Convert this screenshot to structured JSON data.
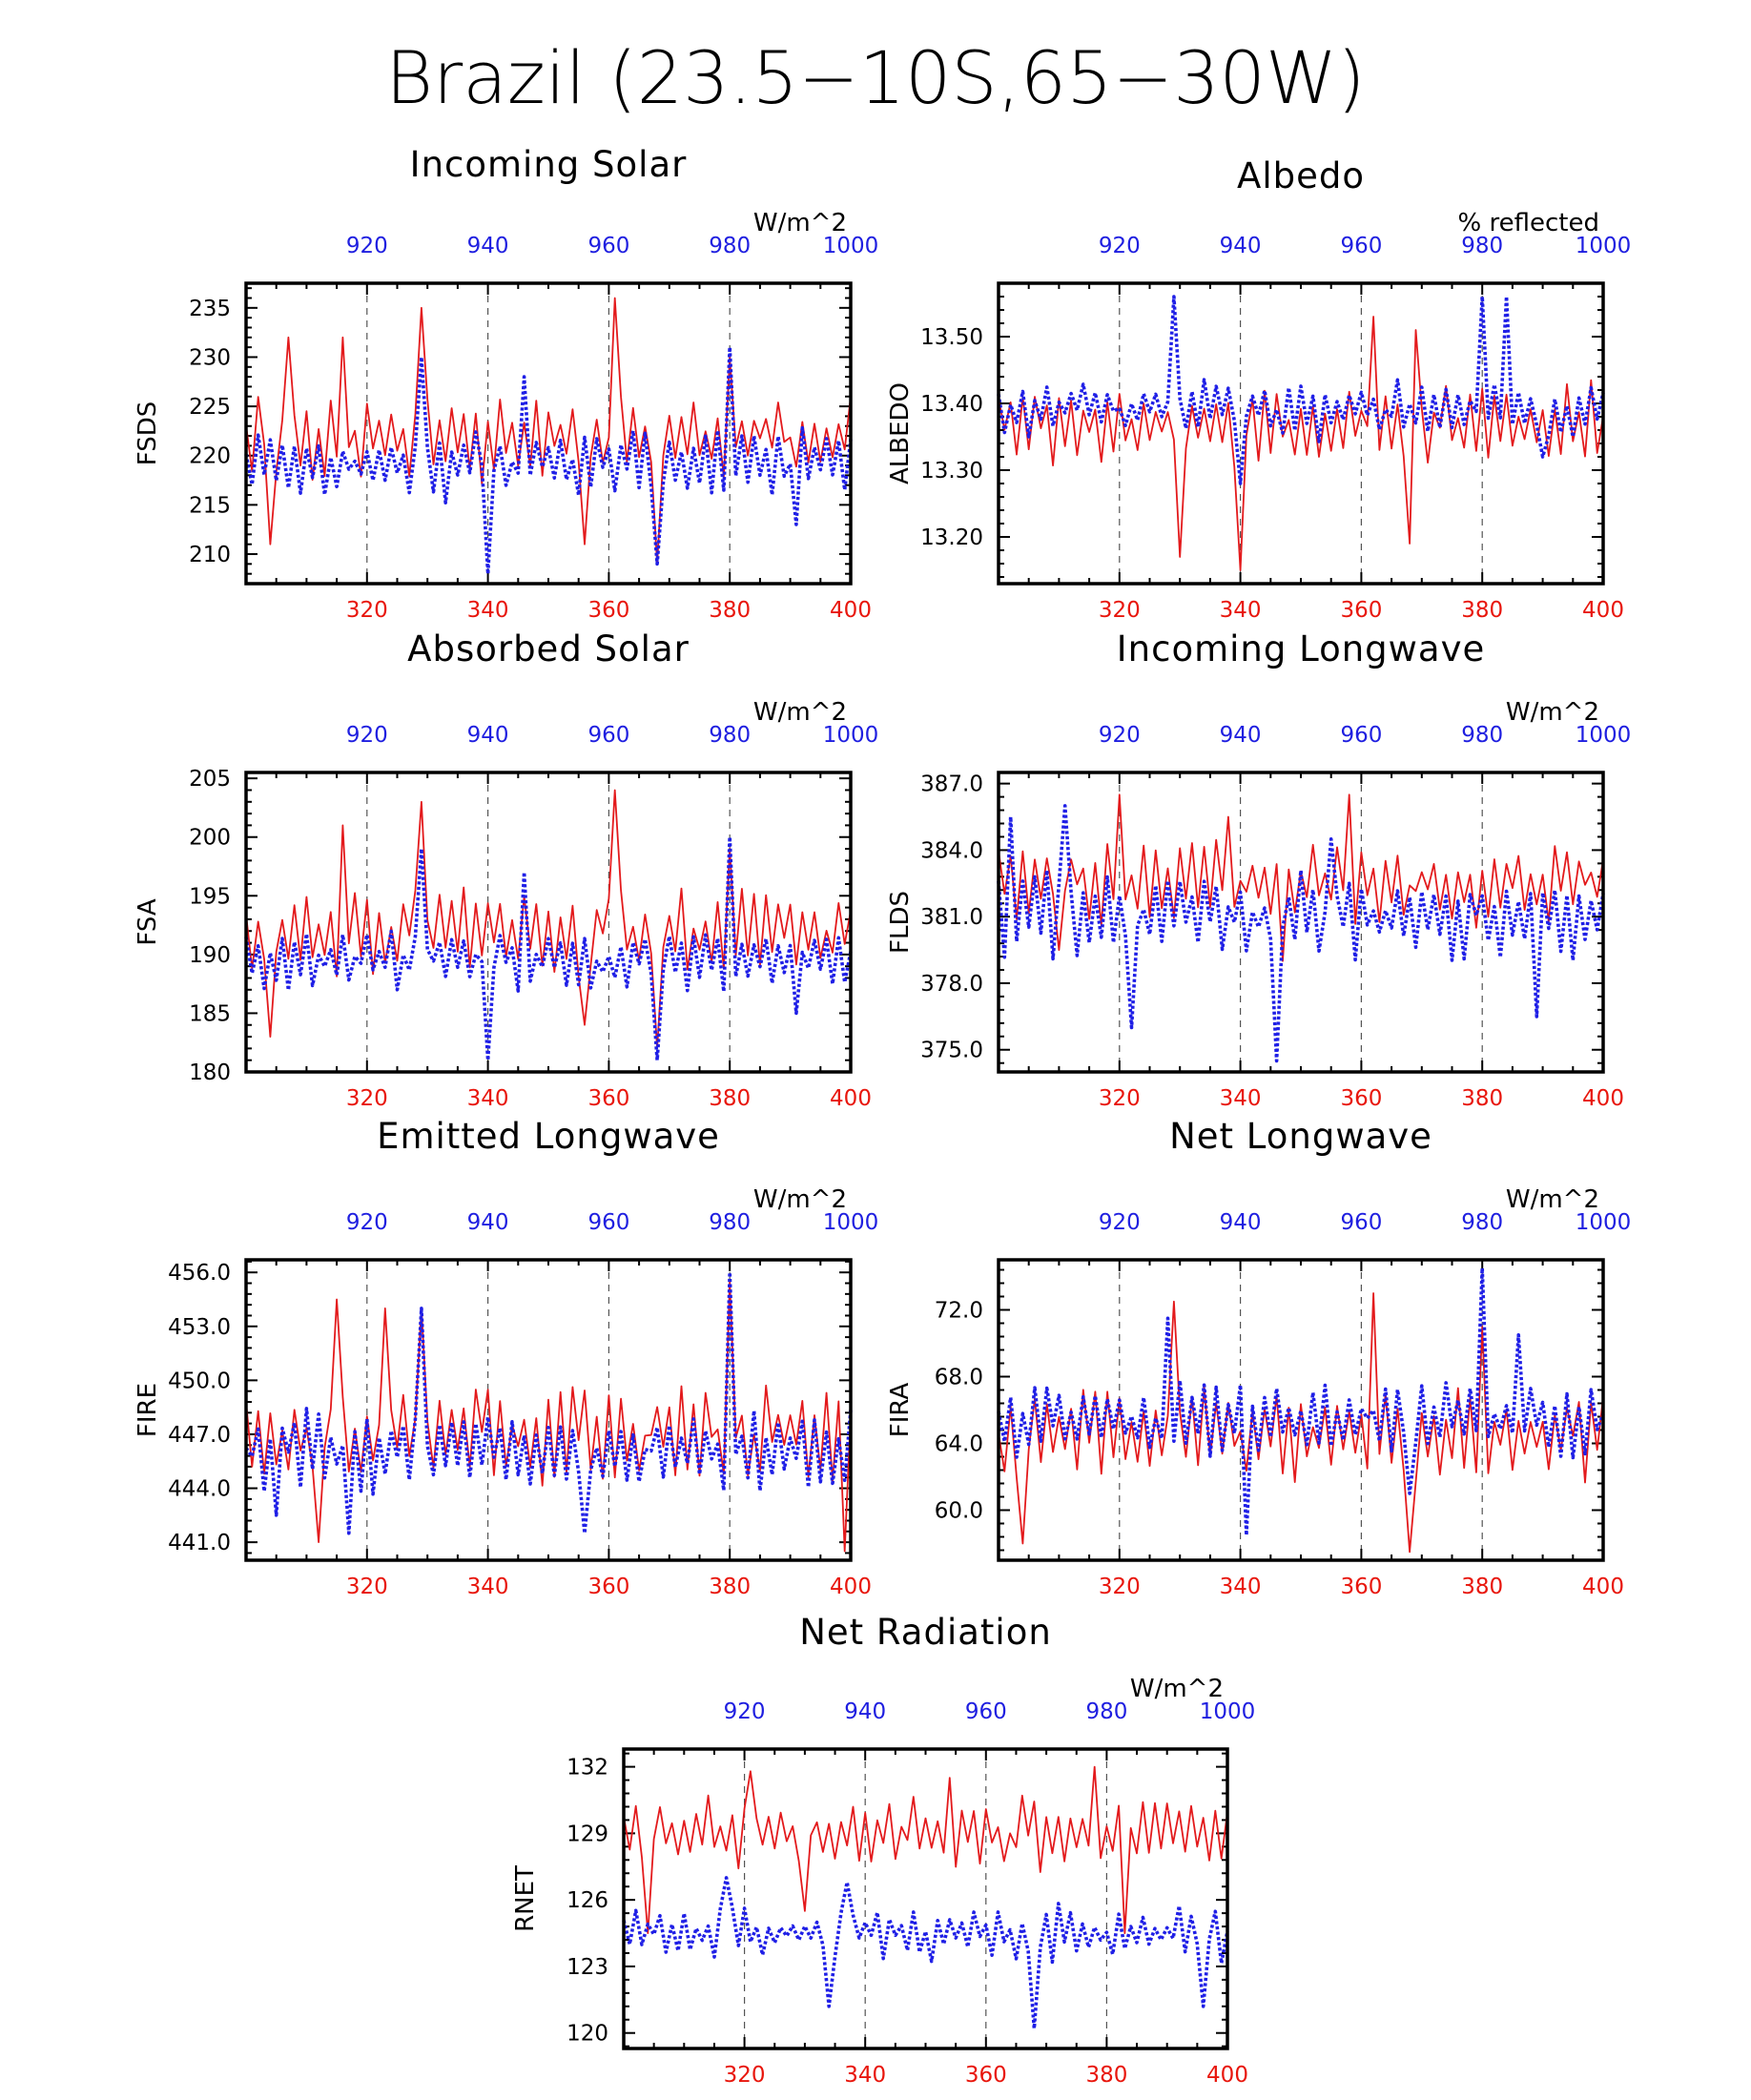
{
  "figure_title": "Brazil (23.5−10S,65−30W)",
  "colors": {
    "series_a": "#e31a1c",
    "series_b": "#1f1fe6",
    "bottom_axis": "#e8160c",
    "top_axis": "#1f1fe0",
    "grid": "#555555"
  },
  "chart_data": [
    {
      "type": "line",
      "title": "Incoming Solar",
      "ylabel": "FSDS",
      "units": "W/m^2",
      "ylim": [
        207,
        237.5
      ],
      "yticks": [
        "210",
        "215",
        "220",
        "225",
        "230",
        "235"
      ],
      "ytick_values": [
        210,
        215,
        220,
        225,
        230,
        235
      ],
      "x_bottom": {
        "range": [
          300,
          400
        ],
        "ticks": [
          320,
          340,
          360,
          380,
          400
        ]
      },
      "x_top": {
        "range": [
          900,
          1000
        ],
        "ticks": [
          920,
          940,
          960,
          980,
          1000
        ]
      },
      "grid": "dashed vertical at 320, 340, 360, 380",
      "series": [
        {
          "style": "solid",
          "color": "red",
          "mean": 222,
          "amp": 5,
          "seed": 11,
          "peaks": [
            [
              7,
              232
            ],
            [
              16,
              232
            ],
            [
              29,
              235
            ],
            [
              61,
              236
            ],
            [
              80,
              230
            ]
          ],
          "troughs": [
            [
              4,
              211
            ],
            [
              56,
              211
            ],
            [
              68,
              209
            ]
          ]
        },
        {
          "style": "dotted",
          "color": "blue",
          "mean": 219,
          "amp": 4,
          "seed": 23,
          "peaks": [
            [
              29,
              230
            ],
            [
              46,
              228
            ],
            [
              80,
              231
            ]
          ],
          "troughs": [
            [
              40,
              208
            ],
            [
              68,
              209
            ],
            [
              91,
              213
            ]
          ]
        }
      ]
    },
    {
      "type": "line",
      "title": "Albedo",
      "ylabel": "ALBEDO",
      "units": "% reflected",
      "ylim": [
        13.13,
        13.58
      ],
      "yticks": [
        "13.20",
        "13.30",
        "13.40",
        "13.50"
      ],
      "ytick_values": [
        13.2,
        13.3,
        13.4,
        13.5
      ],
      "x_bottom": {
        "range": [
          300,
          400
        ],
        "ticks": [
          320,
          340,
          360,
          380,
          400
        ]
      },
      "x_top": {
        "range": [
          900,
          1000
        ],
        "ticks": [
          920,
          940,
          960,
          980,
          1000
        ]
      },
      "grid": "dashed vertical at 320, 340, 360, 380",
      "series": [
        {
          "style": "solid",
          "color": "red",
          "mean": 13.37,
          "amp": 0.07,
          "seed": 5,
          "peaks": [
            [
              62,
              13.53
            ],
            [
              69,
              13.51
            ]
          ],
          "troughs": [
            [
              30,
              13.17
            ],
            [
              40,
              13.15
            ],
            [
              68,
              13.19
            ]
          ]
        },
        {
          "style": "dotted",
          "color": "blue",
          "mean": 13.39,
          "amp": 0.05,
          "seed": 37,
          "peaks": [
            [
              29,
              13.56
            ],
            [
              80,
              13.56
            ],
            [
              84,
              13.56
            ]
          ],
          "troughs": [
            [
              40,
              13.28
            ],
            [
              90,
              13.32
            ]
          ]
        }
      ]
    },
    {
      "type": "line",
      "title": "Absorbed Solar",
      "ylabel": "FSA",
      "units": "W/m^2",
      "ylim": [
        180,
        205.5
      ],
      "yticks": [
        "180",
        "185",
        "190",
        "195",
        "200",
        "205"
      ],
      "ytick_values": [
        180,
        185,
        190,
        195,
        200,
        205
      ],
      "x_bottom": {
        "range": [
          300,
          400
        ],
        "ticks": [
          320,
          340,
          360,
          380,
          400
        ]
      },
      "x_top": {
        "range": [
          900,
          1000
        ],
        "ticks": [
          920,
          940,
          960,
          980,
          1000
        ]
      },
      "grid": "dashed vertical at 320, 340, 360, 380",
      "series": [
        {
          "style": "solid",
          "color": "red",
          "mean": 192,
          "amp": 4,
          "seed": 13,
          "peaks": [
            [
              16,
              201
            ],
            [
              29,
              203
            ],
            [
              61,
              204
            ],
            [
              80,
              199
            ]
          ],
          "troughs": [
            [
              4,
              183
            ],
            [
              56,
              184
            ],
            [
              68,
              182
            ]
          ]
        },
        {
          "style": "dotted",
          "color": "blue",
          "mean": 189.5,
          "amp": 3,
          "seed": 29,
          "peaks": [
            [
              29,
              199
            ],
            [
              46,
              197
            ],
            [
              80,
              200
            ]
          ],
          "troughs": [
            [
              40,
              181
            ],
            [
              68,
              181
            ],
            [
              91,
              185
            ]
          ]
        }
      ]
    },
    {
      "type": "line",
      "title": "Incoming Longwave",
      "ylabel": "FLDS",
      "units": "W/m^2",
      "ylim": [
        374,
        387.5
      ],
      "yticks": [
        "375.0",
        "378.0",
        "381.0",
        "384.0",
        "387.0"
      ],
      "ytick_values": [
        375,
        378,
        381,
        384,
        387
      ],
      "x_bottom": {
        "range": [
          300,
          400
        ],
        "ticks": [
          320,
          340,
          360,
          380,
          400
        ]
      },
      "x_top": {
        "range": [
          900,
          1000
        ],
        "ticks": [
          920,
          940,
          960,
          980,
          1000
        ]
      },
      "grid": "dashed vertical at 320, 340, 360, 380",
      "series": [
        {
          "style": "solid",
          "color": "red",
          "mean": 382.5,
          "amp": 2.2,
          "seed": 7,
          "peaks": [
            [
              20,
              386.5
            ],
            [
              58,
              386.5
            ],
            [
              38,
              385.5
            ]
          ],
          "troughs": [
            [
              10,
              379.5
            ],
            [
              47,
              379
            ]
          ]
        },
        {
          "style": "dotted",
          "color": "blue",
          "mean": 381,
          "amp": 2.2,
          "seed": 41,
          "peaks": [
            [
              2,
              385.5
            ],
            [
              11,
              386
            ],
            [
              55,
              384.5
            ]
          ],
          "troughs": [
            [
              22,
              376
            ],
            [
              46,
              374.5
            ],
            [
              89,
              376.5
            ]
          ]
        }
      ]
    },
    {
      "type": "line",
      "title": "Emitted Longwave",
      "ylabel": "FIRE",
      "units": "W/m^2",
      "ylim": [
        440,
        456.7
      ],
      "yticks": [
        "441.0",
        "444.0",
        "447.0",
        "450.0",
        "453.0",
        "456.0"
      ],
      "ytick_values": [
        441,
        444,
        447,
        450,
        453,
        456
      ],
      "x_bottom": {
        "range": [
          300,
          400
        ],
        "ticks": [
          320,
          340,
          360,
          380,
          400
        ]
      },
      "x_top": {
        "range": [
          900,
          1000
        ],
        "ticks": [
          920,
          940,
          960,
          980,
          1000
        ]
      },
      "grid": "dashed vertical at 320, 340, 360, 380",
      "series": [
        {
          "style": "solid",
          "color": "red",
          "mean": 447,
          "amp": 3,
          "seed": 17,
          "peaks": [
            [
              15,
              454.5
            ],
            [
              23,
              454
            ],
            [
              29,
              454
            ],
            [
              80,
              455.5
            ]
          ],
          "troughs": [
            [
              12,
              441
            ],
            [
              99,
              440.5
            ]
          ]
        },
        {
          "style": "dotted",
          "color": "blue",
          "mean": 446,
          "amp": 2.5,
          "seed": 31,
          "peaks": [
            [
              29,
              454
            ],
            [
              80,
              456
            ]
          ],
          "troughs": [
            [
              5,
              442.5
            ],
            [
              17,
              441.5
            ],
            [
              56,
              441.5
            ]
          ]
        }
      ]
    },
    {
      "type": "line",
      "title": "Net Longwave",
      "ylabel": "FIRA",
      "units": "W/m^2",
      "ylim": [
        57,
        75
      ],
      "yticks": [
        "60.0",
        "64.0",
        "68.0",
        "72.0"
      ],
      "ytick_values": [
        60,
        64,
        68,
        72
      ],
      "x_bottom": {
        "range": [
          300,
          400
        ],
        "ticks": [
          320,
          340,
          360,
          380,
          400
        ]
      },
      "x_top": {
        "range": [
          900,
          1000
        ],
        "ticks": [
          920,
          940,
          960,
          980,
          1000
        ]
      },
      "grid": "dashed vertical at 320, 340, 360, 380",
      "series": [
        {
          "style": "solid",
          "color": "red",
          "mean": 64.5,
          "amp": 3.2,
          "seed": 19,
          "peaks": [
            [
              29,
              72.5
            ],
            [
              62,
              73
            ],
            [
              80,
              71
            ]
          ],
          "troughs": [
            [
              4,
              58
            ],
            [
              68,
              57.5
            ]
          ]
        },
        {
          "style": "dotted",
          "color": "blue",
          "mean": 65.5,
          "amp": 2.5,
          "seed": 43,
          "peaks": [
            [
              28,
              71.5
            ],
            [
              80,
              74.5
            ],
            [
              86,
              70.5
            ]
          ],
          "troughs": [
            [
              41,
              58.5
            ],
            [
              68,
              61
            ]
          ]
        }
      ]
    },
    {
      "type": "line",
      "title": "Net Radiation",
      "ylabel": "RNET",
      "units": "W/m^2",
      "ylim": [
        119.3,
        132.8
      ],
      "yticks": [
        "120",
        "123",
        "126",
        "129",
        "132"
      ],
      "ytick_values": [
        120,
        123,
        126,
        129,
        132
      ],
      "x_bottom": {
        "range": [
          300,
          400
        ],
        "ticks": [
          320,
          340,
          360,
          380,
          400
        ]
      },
      "x_top": {
        "range": [
          900,
          1000
        ],
        "ticks": [
          920,
          940,
          960,
          980,
          1000
        ]
      },
      "grid": "dashed vertical at 320, 340, 360, 380",
      "series": [
        {
          "style": "solid",
          "color": "red",
          "mean": 129,
          "amp": 1.8,
          "seed": 3,
          "peaks": [
            [
              21,
              131.8
            ],
            [
              78,
              132
            ],
            [
              54,
              131.5
            ]
          ],
          "troughs": [
            [
              4,
              124.5
            ],
            [
              30,
              125.5
            ],
            [
              83,
              124.5
            ]
          ]
        },
        {
          "style": "dotted",
          "color": "blue",
          "mean": 124.5,
          "amp": 1.4,
          "seed": 47,
          "peaks": [
            [
              17,
              127
            ],
            [
              37,
              126.8
            ]
          ],
          "troughs": [
            [
              68,
              120.2
            ],
            [
              34,
              121.2
            ],
            [
              96,
              121.2
            ]
          ]
        }
      ]
    }
  ]
}
